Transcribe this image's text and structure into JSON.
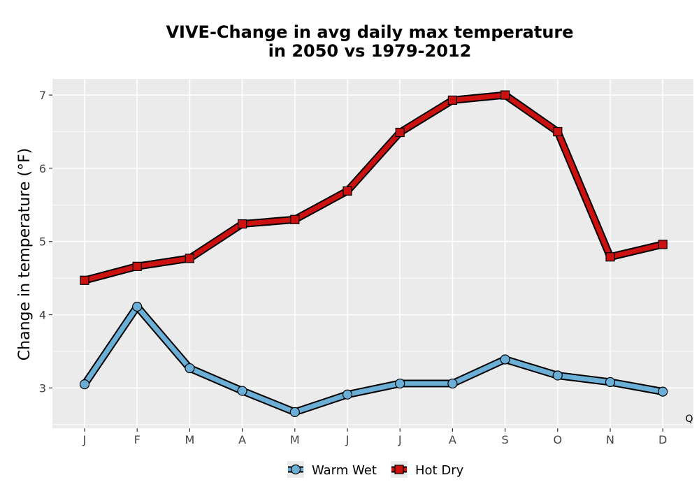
{
  "chart_data": {
    "type": "line",
    "title_line1": "VIVE-Change in avg daily max temperature",
    "title_line2": "in 2050 vs 1979-2012",
    "ylabel": "Change in temperature (°F)",
    "xlabel": "",
    "categories": [
      "J",
      "F",
      "M",
      "A",
      "M",
      "J",
      "J",
      "A",
      "S",
      "O",
      "N",
      "D"
    ],
    "yticks": [
      3,
      4,
      5,
      6,
      7
    ],
    "ylim": [
      2.45,
      7.22
    ],
    "grid": true,
    "legend_position": "bottom",
    "corner_label": "Q",
    "series": [
      {
        "name": "Warm Wet",
        "values": [
          3.05,
          4.11,
          3.27,
          2.96,
          2.67,
          2.91,
          3.06,
          3.06,
          3.39,
          3.17,
          3.08,
          2.95
        ],
        "color": "#6baed6",
        "marker": "circle"
      },
      {
        "name": "Hot Dry",
        "values": [
          4.47,
          4.66,
          4.77,
          5.24,
          5.3,
          5.69,
          6.49,
          6.93,
          7.0,
          6.5,
          4.79,
          4.96
        ],
        "color": "#cc1111",
        "marker": "square"
      }
    ]
  }
}
